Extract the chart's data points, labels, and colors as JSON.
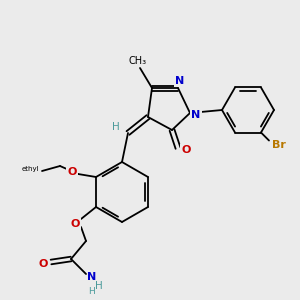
{
  "bg_color": "#ebebeb",
  "atom_colors": {
    "C": "#000000",
    "H": "#4a9a9a",
    "N": "#0000cc",
    "O": "#cc0000",
    "Br": "#b87800",
    "label": "#000000"
  },
  "figsize": [
    3.0,
    3.0
  ],
  "dpi": 100
}
